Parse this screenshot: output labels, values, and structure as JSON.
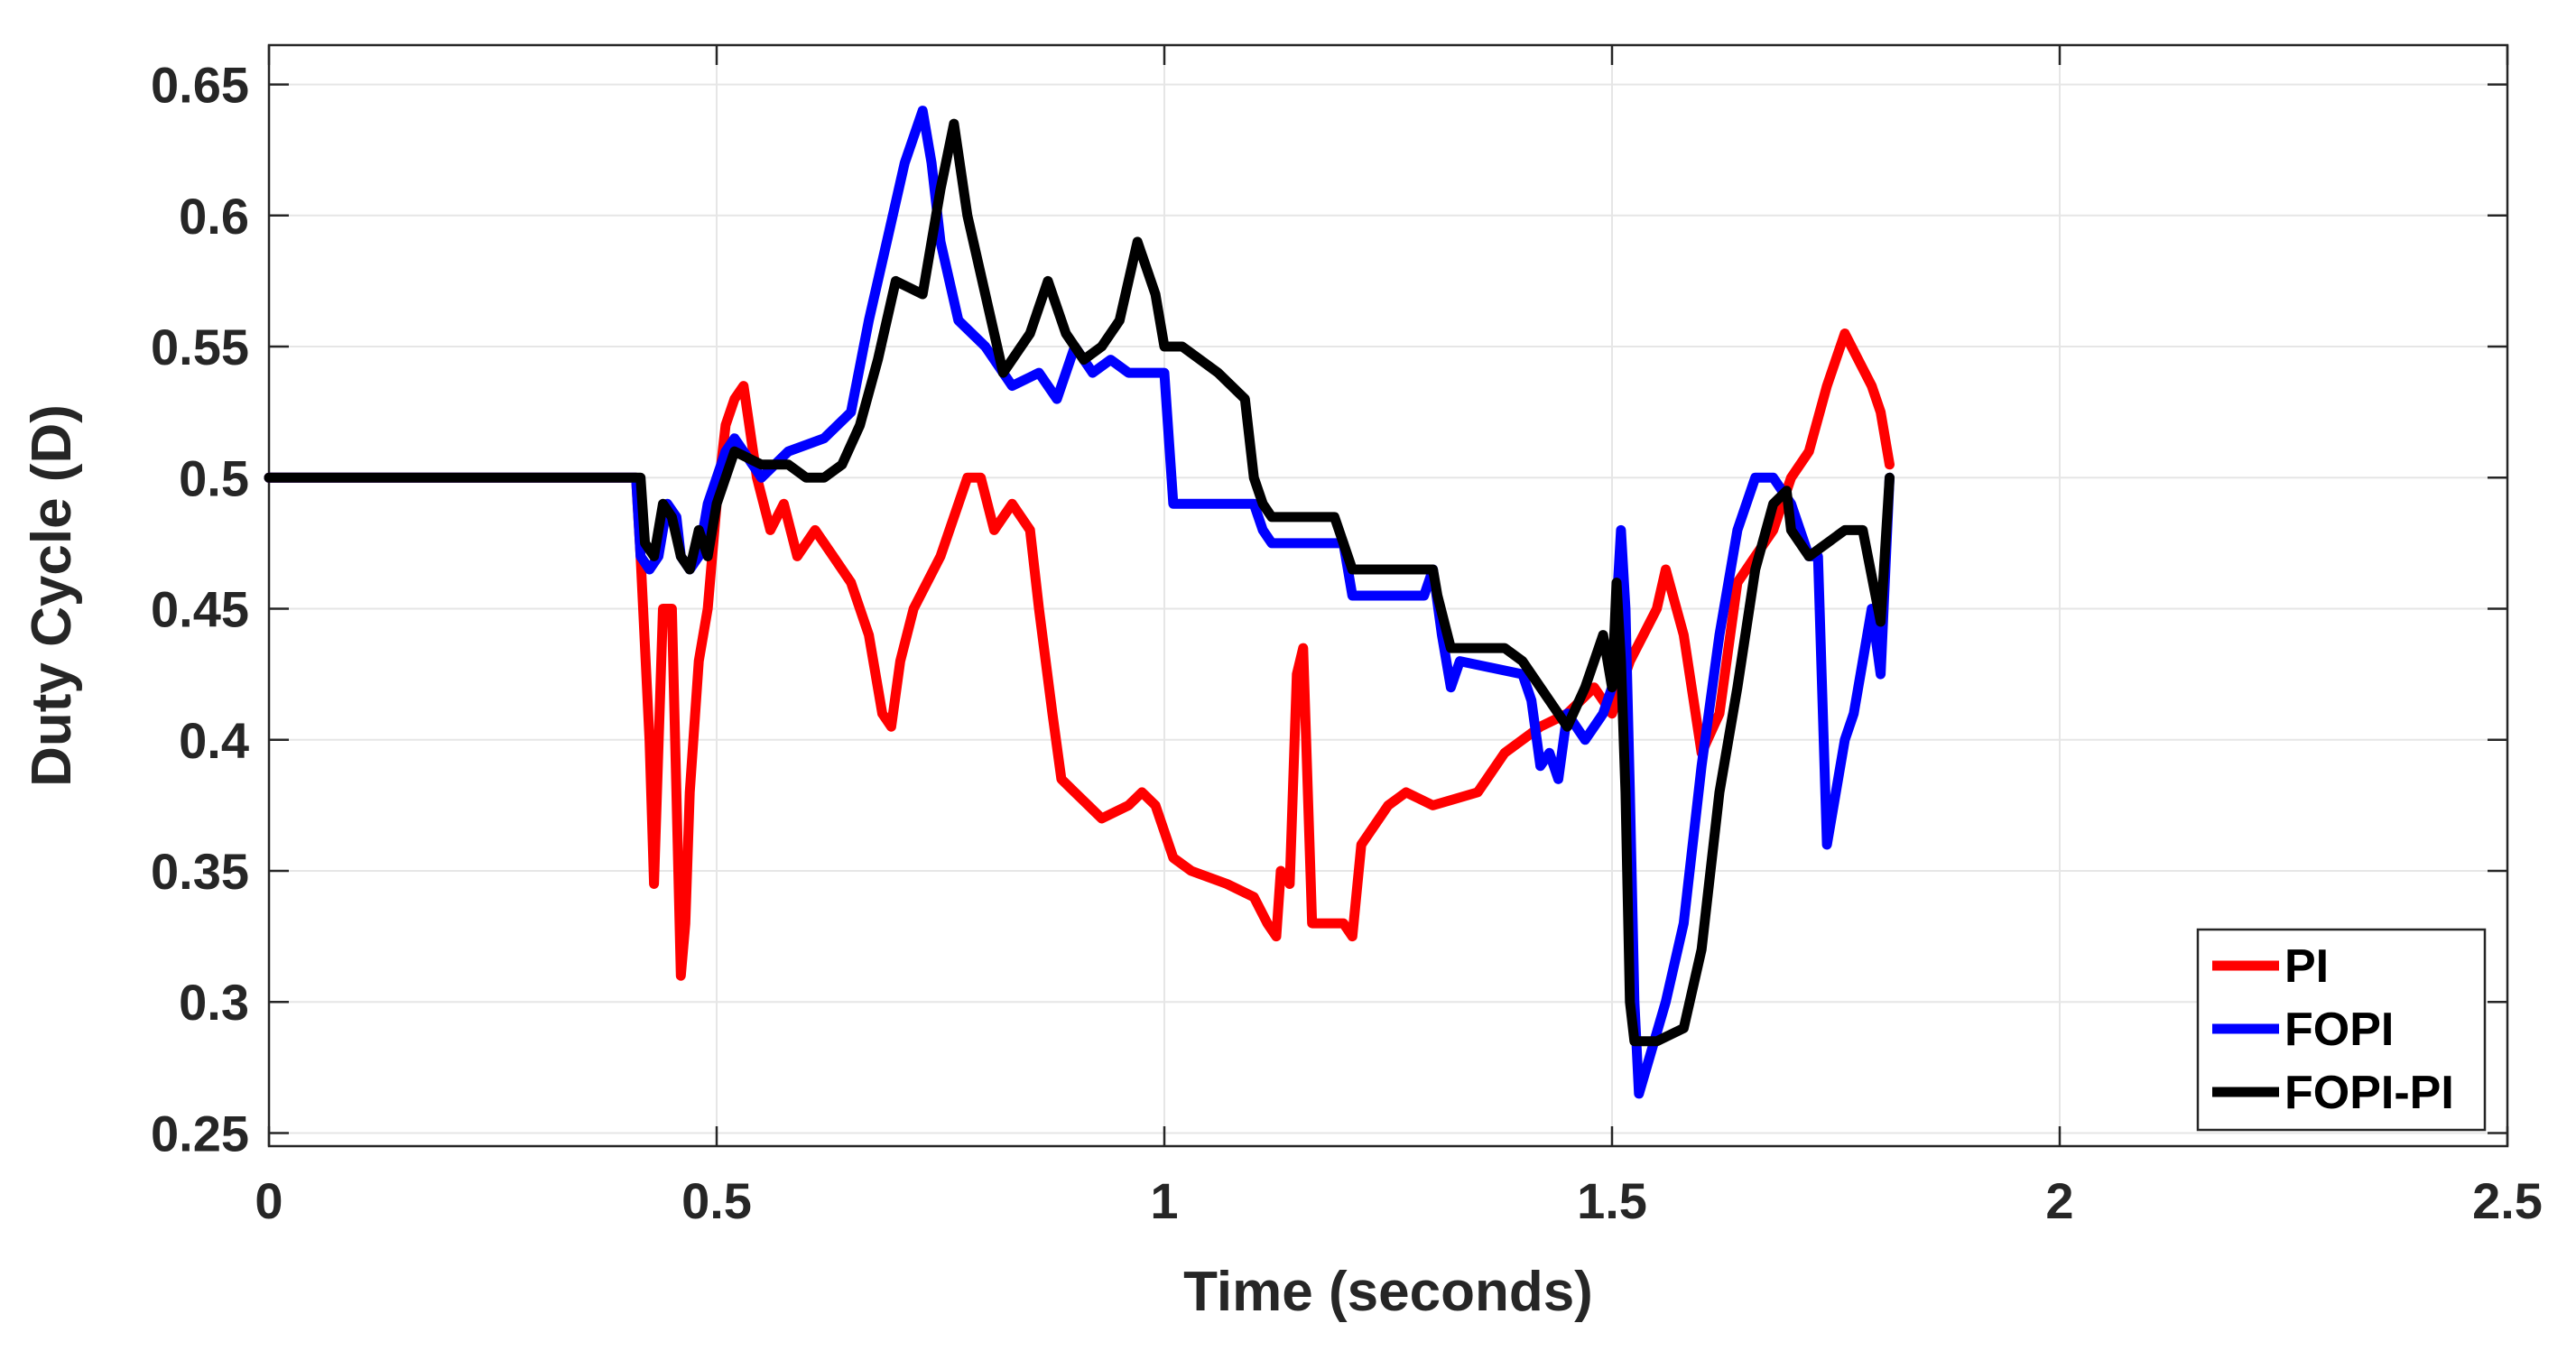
{
  "chart_data": {
    "type": "line",
    "title": "",
    "xlabel": "Time (seconds)",
    "ylabel": "Duty Cycle (D)",
    "xlim": [
      0,
      2.5
    ],
    "ylim": [
      0.245,
      0.665
    ],
    "x_ticks": [
      "0",
      "0.5",
      "1",
      "1.5",
      "2",
      "2.5"
    ],
    "x_tick_values": [
      0,
      0.5,
      1,
      1.5,
      2,
      2.5
    ],
    "y_ticks": [
      "0.25",
      "0.3",
      "0.35",
      "0.4",
      "0.45",
      "0.5",
      "0.55",
      "0.6",
      "0.65"
    ],
    "y_tick_values": [
      0.25,
      0.3,
      0.35,
      0.4,
      0.45,
      0.5,
      0.55,
      0.6,
      0.65
    ],
    "grid": true,
    "legend_position": "bottom-right",
    "series": [
      {
        "name": "PI",
        "color": "#ff0000",
        "x": [
          0,
          0.41,
          0.415,
          0.425,
          0.43,
          0.44,
          0.45,
          0.455,
          0.46,
          0.465,
          0.47,
          0.48,
          0.49,
          0.5,
          0.51,
          0.52,
          0.53,
          0.545,
          0.56,
          0.575,
          0.59,
          0.61,
          0.63,
          0.65,
          0.67,
          0.685,
          0.695,
          0.705,
          0.72,
          0.75,
          0.78,
          0.795,
          0.81,
          0.83,
          0.85,
          0.86,
          0.875,
          0.885,
          0.9,
          0.93,
          0.96,
          0.975,
          0.99,
          1.01,
          1.03,
          1.07,
          1.1,
          1.115,
          1.125,
          1.13,
          1.14,
          1.148,
          1.155,
          1.165,
          1.18,
          1.2,
          1.21,
          1.22,
          1.24,
          1.25,
          1.27,
          1.3,
          1.35,
          1.38,
          1.42,
          1.45,
          1.48,
          1.5,
          1.52,
          1.535,
          1.55,
          1.56,
          1.58,
          1.6,
          1.62,
          1.64,
          1.66,
          1.68,
          1.7,
          1.72,
          1.74,
          1.76,
          1.775,
          1.79,
          1.8,
          1.81
        ],
        "y": [
          0.5,
          0.5,
          0.47,
          0.4,
          0.345,
          0.45,
          0.45,
          0.38,
          0.31,
          0.33,
          0.38,
          0.43,
          0.45,
          0.49,
          0.52,
          0.53,
          0.535,
          0.5,
          0.48,
          0.49,
          0.47,
          0.48,
          0.47,
          0.46,
          0.44,
          0.41,
          0.405,
          0.43,
          0.45,
          0.47,
          0.5,
          0.5,
          0.48,
          0.49,
          0.48,
          0.45,
          0.41,
          0.385,
          0.38,
          0.37,
          0.375,
          0.38,
          0.375,
          0.355,
          0.35,
          0.345,
          0.34,
          0.33,
          0.325,
          0.35,
          0.345,
          0.425,
          0.435,
          0.33,
          0.33,
          0.33,
          0.325,
          0.36,
          0.37,
          0.375,
          0.38,
          0.375,
          0.38,
          0.395,
          0.405,
          0.41,
          0.42,
          0.41,
          0.43,
          0.44,
          0.45,
          0.465,
          0.44,
          0.395,
          0.41,
          0.46,
          0.47,
          0.48,
          0.5,
          0.51,
          0.535,
          0.555,
          0.545,
          0.535,
          0.525,
          0.505
        ]
      },
      {
        "name": "FOPI",
        "color": "#0000ff",
        "x": [
          0,
          0.41,
          0.415,
          0.425,
          0.435,
          0.445,
          0.455,
          0.46,
          0.47,
          0.48,
          0.49,
          0.5,
          0.51,
          0.52,
          0.53,
          0.55,
          0.58,
          0.62,
          0.65,
          0.67,
          0.69,
          0.71,
          0.73,
          0.74,
          0.75,
          0.77,
          0.8,
          0.83,
          0.86,
          0.88,
          0.9,
          0.92,
          0.94,
          0.96,
          0.99,
          1.0,
          1.01,
          1.05,
          1.1,
          1.11,
          1.12,
          1.2,
          1.21,
          1.29,
          1.3,
          1.31,
          1.32,
          1.33,
          1.4,
          1.41,
          1.42,
          1.43,
          1.44,
          1.45,
          1.47,
          1.49,
          1.5,
          1.51,
          1.515,
          1.52,
          1.525,
          1.53,
          1.56,
          1.58,
          1.6,
          1.62,
          1.64,
          1.66,
          1.68,
          1.7,
          1.72,
          1.73,
          1.74,
          1.75,
          1.76,
          1.77,
          1.78,
          1.79,
          1.8,
          1.81
        ],
        "y": [
          0.5,
          0.5,
          0.47,
          0.465,
          0.47,
          0.49,
          0.485,
          0.47,
          0.465,
          0.47,
          0.49,
          0.5,
          0.51,
          0.515,
          0.51,
          0.5,
          0.51,
          0.515,
          0.525,
          0.56,
          0.59,
          0.62,
          0.64,
          0.62,
          0.59,
          0.56,
          0.55,
          0.535,
          0.54,
          0.53,
          0.55,
          0.54,
          0.545,
          0.54,
          0.54,
          0.54,
          0.49,
          0.49,
          0.49,
          0.48,
          0.475,
          0.475,
          0.455,
          0.455,
          0.465,
          0.44,
          0.42,
          0.43,
          0.425,
          0.415,
          0.39,
          0.395,
          0.385,
          0.41,
          0.4,
          0.41,
          0.42,
          0.48,
          0.45,
          0.38,
          0.3,
          0.265,
          0.3,
          0.33,
          0.39,
          0.44,
          0.48,
          0.5,
          0.5,
          0.49,
          0.47,
          0.47,
          0.36,
          0.38,
          0.4,
          0.41,
          0.43,
          0.45,
          0.425,
          0.5
        ]
      },
      {
        "name": "FOPI-PI",
        "color": "#000000",
        "x": [
          0,
          0.415,
          0.42,
          0.43,
          0.44,
          0.45,
          0.46,
          0.47,
          0.48,
          0.49,
          0.5,
          0.52,
          0.55,
          0.58,
          0.6,
          0.62,
          0.64,
          0.66,
          0.68,
          0.7,
          0.73,
          0.75,
          0.765,
          0.78,
          0.8,
          0.82,
          0.85,
          0.87,
          0.89,
          0.91,
          0.93,
          0.95,
          0.97,
          0.99,
          1.0,
          1.02,
          1.06,
          1.09,
          1.1,
          1.11,
          1.12,
          1.19,
          1.2,
          1.21,
          1.3,
          1.305,
          1.32,
          1.38,
          1.4,
          1.41,
          1.43,
          1.45,
          1.47,
          1.48,
          1.49,
          1.5,
          1.505,
          1.51,
          1.515,
          1.52,
          1.525,
          1.55,
          1.58,
          1.6,
          1.62,
          1.64,
          1.66,
          1.68,
          1.695,
          1.7,
          1.72,
          1.74,
          1.76,
          1.78,
          1.8,
          1.81
        ],
        "y": [
          0.5,
          0.5,
          0.475,
          0.47,
          0.49,
          0.485,
          0.47,
          0.465,
          0.48,
          0.47,
          0.49,
          0.51,
          0.505,
          0.505,
          0.5,
          0.5,
          0.505,
          0.52,
          0.545,
          0.575,
          0.57,
          0.61,
          0.635,
          0.6,
          0.57,
          0.54,
          0.555,
          0.575,
          0.555,
          0.545,
          0.55,
          0.56,
          0.59,
          0.57,
          0.55,
          0.55,
          0.54,
          0.53,
          0.5,
          0.49,
          0.485,
          0.485,
          0.475,
          0.465,
          0.465,
          0.455,
          0.435,
          0.435,
          0.43,
          0.425,
          0.415,
          0.405,
          0.42,
          0.43,
          0.44,
          0.42,
          0.46,
          0.43,
          0.38,
          0.3,
          0.285,
          0.285,
          0.29,
          0.32,
          0.38,
          0.42,
          0.465,
          0.49,
          0.495,
          0.48,
          0.47,
          0.475,
          0.48,
          0.48,
          0.445,
          0.5
        ]
      }
    ]
  }
}
